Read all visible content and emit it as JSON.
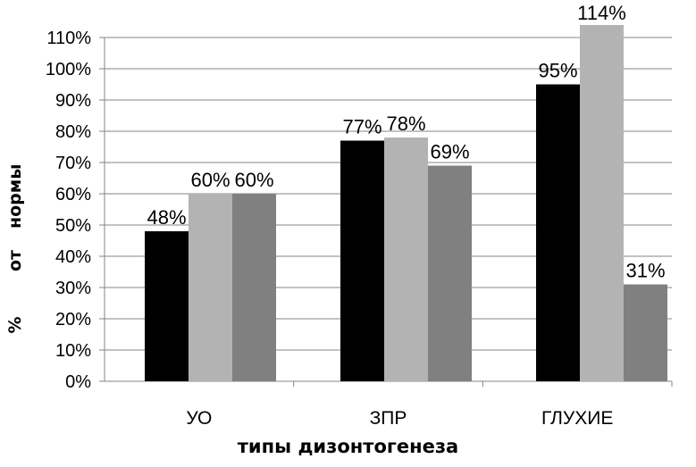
{
  "chart_data": {
    "type": "bar",
    "categories": [
      "УО",
      "ЗПР",
      "ГЛУХИЕ"
    ],
    "series": [
      {
        "values": [
          48,
          77,
          95
        ],
        "color": "#000000"
      },
      {
        "values": [
          60,
          78,
          114
        ],
        "color": "#b3b3b3"
      },
      {
        "values": [
          60,
          69,
          31
        ],
        "color": "#808080"
      }
    ],
    "data_labels": [
      [
        "48%",
        "77%",
        "95%"
      ],
      [
        "60%",
        "78%",
        "114%"
      ],
      [
        "60%",
        "69%",
        "31%"
      ]
    ],
    "yticks": [
      "0%",
      "10%",
      "20%",
      "30%",
      "40%",
      "50%",
      "60%",
      "70%",
      "80%",
      "90%",
      "100%",
      "110%"
    ],
    "ylim": [
      0,
      110
    ],
    "xlabel": "типы дизонтогенеза",
    "ylabel_words": [
      "%",
      "от",
      "нормы"
    ],
    "grid": true,
    "legend": "none"
  }
}
